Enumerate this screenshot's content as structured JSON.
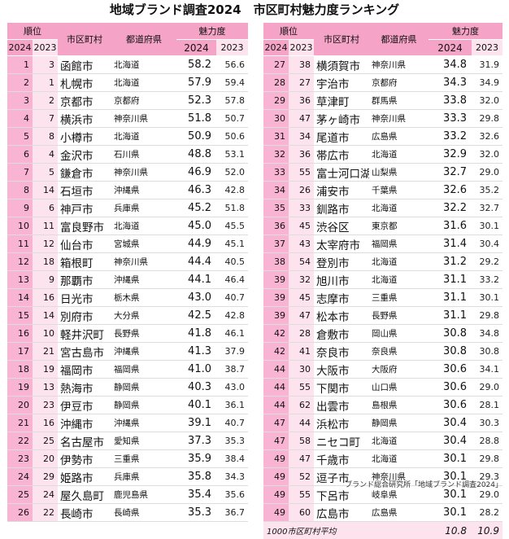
{
  "title": "地域ブランド調査2024　市区町村魅力度ランキング",
  "headers": {
    "rank": "順位",
    "city": "市区町村",
    "pref": "都道府県",
    "score": "魅力度",
    "y2024": "2024",
    "y2023": "2023"
  },
  "left_rows": [
    {
      "r24": "1",
      "r23": "3",
      "city": "函館市",
      "pref": "北海道",
      "s24": "58.2",
      "s23": "56.6"
    },
    {
      "r24": "2",
      "r23": "1",
      "city": "札幌市",
      "pref": "北海道",
      "s24": "57.9",
      "s23": "59.4"
    },
    {
      "r24": "3",
      "r23": "2",
      "city": "京都市",
      "pref": "京都府",
      "s24": "52.3",
      "s23": "57.8"
    },
    {
      "r24": "4",
      "r23": "7",
      "city": "横浜市",
      "pref": "神奈川県",
      "s24": "51.8",
      "s23": "50.7"
    },
    {
      "r24": "5",
      "r23": "8",
      "city": "小樽市",
      "pref": "北海道",
      "s24": "50.9",
      "s23": "50.6"
    },
    {
      "r24": "6",
      "r23": "4",
      "city": "金沢市",
      "pref": "石川県",
      "s24": "48.8",
      "s23": "53.1"
    },
    {
      "r24": "7",
      "r23": "5",
      "city": "鎌倉市",
      "pref": "神奈川県",
      "s24": "46.9",
      "s23": "52.0"
    },
    {
      "r24": "8",
      "r23": "14",
      "city": "石垣市",
      "pref": "沖縄県",
      "s24": "46.3",
      "s23": "42.8"
    },
    {
      "r24": "9",
      "r23": "6",
      "city": "神戸市",
      "pref": "兵庫県",
      "s24": "45.2",
      "s23": "51.8"
    },
    {
      "r24": "10",
      "r23": "11",
      "city": "富良野市",
      "pref": "北海道",
      "s24": "45.0",
      "s23": "45.5"
    },
    {
      "r24": "11",
      "r23": "12",
      "city": "仙台市",
      "pref": "宮城県",
      "s24": "44.9",
      "s23": "45.1"
    },
    {
      "r24": "12",
      "r23": "18",
      "city": "箱根町",
      "pref": "神奈川県",
      "s24": "44.4",
      "s23": "40.5"
    },
    {
      "r24": "13",
      "r23": "9",
      "city": "那覇市",
      "pref": "沖縄県",
      "s24": "44.1",
      "s23": "46.4"
    },
    {
      "r24": "14",
      "r23": "16",
      "city": "日光市",
      "pref": "栃木県",
      "s24": "43.0",
      "s23": "40.7"
    },
    {
      "r24": "15",
      "r23": "14",
      "city": "別府市",
      "pref": "大分県",
      "s24": "42.5",
      "s23": "42.8"
    },
    {
      "r24": "16",
      "r23": "10",
      "city": "軽井沢町",
      "pref": "長野県",
      "s24": "41.8",
      "s23": "46.1"
    },
    {
      "r24": "17",
      "r23": "21",
      "city": "宮古島市",
      "pref": "沖縄県",
      "s24": "41.3",
      "s23": "37.9"
    },
    {
      "r24": "18",
      "r23": "19",
      "city": "福岡市",
      "pref": "福岡県",
      "s24": "41.0",
      "s23": "38.7"
    },
    {
      "r24": "19",
      "r23": "13",
      "city": "熱海市",
      "pref": "静岡県",
      "s24": "40.3",
      "s23": "43.0"
    },
    {
      "r24": "20",
      "r23": "23",
      "city": "伊豆市",
      "pref": "静岡県",
      "s24": "40.1",
      "s23": "36.1"
    },
    {
      "r24": "21",
      "r23": "16",
      "city": "沖縄市",
      "pref": "沖縄県",
      "s24": "39.1",
      "s23": "40.7"
    },
    {
      "r24": "22",
      "r23": "25",
      "city": "名古屋市",
      "pref": "愛知県",
      "s24": "37.3",
      "s23": "35.3"
    },
    {
      "r24": "23",
      "r23": "20",
      "city": "伊勢市",
      "pref": "三重県",
      "s24": "35.9",
      "s23": "38.4"
    },
    {
      "r24": "24",
      "r23": "29",
      "city": "姫路市",
      "pref": "兵庫県",
      "s24": "35.8",
      "s23": "34.3"
    },
    {
      "r24": "25",
      "r23": "24",
      "city": "屋久島町",
      "pref": "鹿児島県",
      "s24": "35.4",
      "s23": "35.6"
    },
    {
      "r24": "26",
      "r23": "22",
      "city": "長崎市",
      "pref": "長崎県",
      "s24": "35.3",
      "s23": "36.7"
    }
  ],
  "right_rows": [
    {
      "r24": "27",
      "r23": "38",
      "city": "横須賀市",
      "pref": "神奈川県",
      "s24": "34.8",
      "s23": "31.9"
    },
    {
      "r24": "28",
      "r23": "27",
      "city": "宇治市",
      "pref": "京都府",
      "s24": "34.3",
      "s23": "34.9"
    },
    {
      "r24": "29",
      "r23": "36",
      "city": "草津町",
      "pref": "群馬県",
      "s24": "33.8",
      "s23": "32.0"
    },
    {
      "r24": "30",
      "r23": "47",
      "city": "茅ヶ崎市",
      "pref": "神奈川県",
      "s24": "33.3",
      "s23": "29.8"
    },
    {
      "r24": "31",
      "r23": "34",
      "city": "尾道市",
      "pref": "広島県",
      "s24": "33.2",
      "s23": "32.6"
    },
    {
      "r24": "32",
      "r23": "36",
      "city": "帯広市",
      "pref": "北海道",
      "s24": "32.9",
      "s23": "32.0"
    },
    {
      "r24": "33",
      "r23": "55",
      "city": "富士河口湖町",
      "pref": "山梨県",
      "s24": "32.7",
      "s23": "29.0"
    },
    {
      "r24": "34",
      "r23": "26",
      "city": "浦安市",
      "pref": "千葉県",
      "s24": "32.6",
      "s23": "35.2"
    },
    {
      "r24": "35",
      "r23": "33",
      "city": "釧路市",
      "pref": "北海道",
      "s24": "32.2",
      "s23": "32.7"
    },
    {
      "r24": "36",
      "r23": "45",
      "city": "渋谷区",
      "pref": "東京都",
      "s24": "31.6",
      "s23": "30.1"
    },
    {
      "r24": "37",
      "r23": "43",
      "city": "太宰府市",
      "pref": "福岡県",
      "s24": "31.4",
      "s23": "30.4"
    },
    {
      "r24": "38",
      "r23": "54",
      "city": "登別市",
      "pref": "北海道",
      "s24": "31.2",
      "s23": "29.2"
    },
    {
      "r24": "39",
      "r23": "32",
      "city": "旭川市",
      "pref": "北海道",
      "s24": "31.1",
      "s23": "33.2"
    },
    {
      "r24": "39",
      "r23": "45",
      "city": "志摩市",
      "pref": "三重県",
      "s24": "31.1",
      "s23": "30.1"
    },
    {
      "r24": "39",
      "r23": "47",
      "city": "松本市",
      "pref": "長野県",
      "s24": "31.1",
      "s23": "29.8"
    },
    {
      "r24": "42",
      "r23": "28",
      "city": "倉敷市",
      "pref": "岡山県",
      "s24": "30.8",
      "s23": "34.8"
    },
    {
      "r24": "42",
      "r23": "41",
      "city": "奈良市",
      "pref": "奈良県",
      "s24": "30.8",
      "s23": "30.8"
    },
    {
      "r24": "44",
      "r23": "30",
      "city": "大阪市",
      "pref": "大阪府",
      "s24": "30.6",
      "s23": "34.1"
    },
    {
      "r24": "44",
      "r23": "55",
      "city": "下関市",
      "pref": "山口県",
      "s24": "30.6",
      "s23": "29.0"
    },
    {
      "r24": "44",
      "r23": "62",
      "city": "出雲市",
      "pref": "島根県",
      "s24": "30.6",
      "s23": "28.1"
    },
    {
      "r24": "47",
      "r23": "44",
      "city": "浜松市",
      "pref": "静岡県",
      "s24": "30.4",
      "s23": "30.3"
    },
    {
      "r24": "47",
      "r23": "58",
      "city": "ニセコ町",
      "pref": "北海道",
      "s24": "30.4",
      "s23": "28.8"
    },
    {
      "r24": "49",
      "r23": "47",
      "city": "千歳市",
      "pref": "北海道",
      "s24": "30.1",
      "s23": "29.8"
    },
    {
      "r24": "49",
      "r23": "52",
      "city": "逗子市",
      "pref": "神奈川県",
      "s24": "30.1",
      "s23": "29.3"
    },
    {
      "r24": "49",
      "r23": "55",
      "city": "下呂市",
      "pref": "岐阜県",
      "s24": "30.1",
      "s23": "29.0"
    },
    {
      "r24": "49",
      "r23": "60",
      "city": "広島市",
      "pref": "広島県",
      "s24": "30.1",
      "s23": "28.2"
    }
  ],
  "average": {
    "label": "1000市区町村平均",
    "s24": "10.8",
    "s23": "10.9"
  },
  "source": "ブランド総合研究所「地域ブランド調査2024」"
}
